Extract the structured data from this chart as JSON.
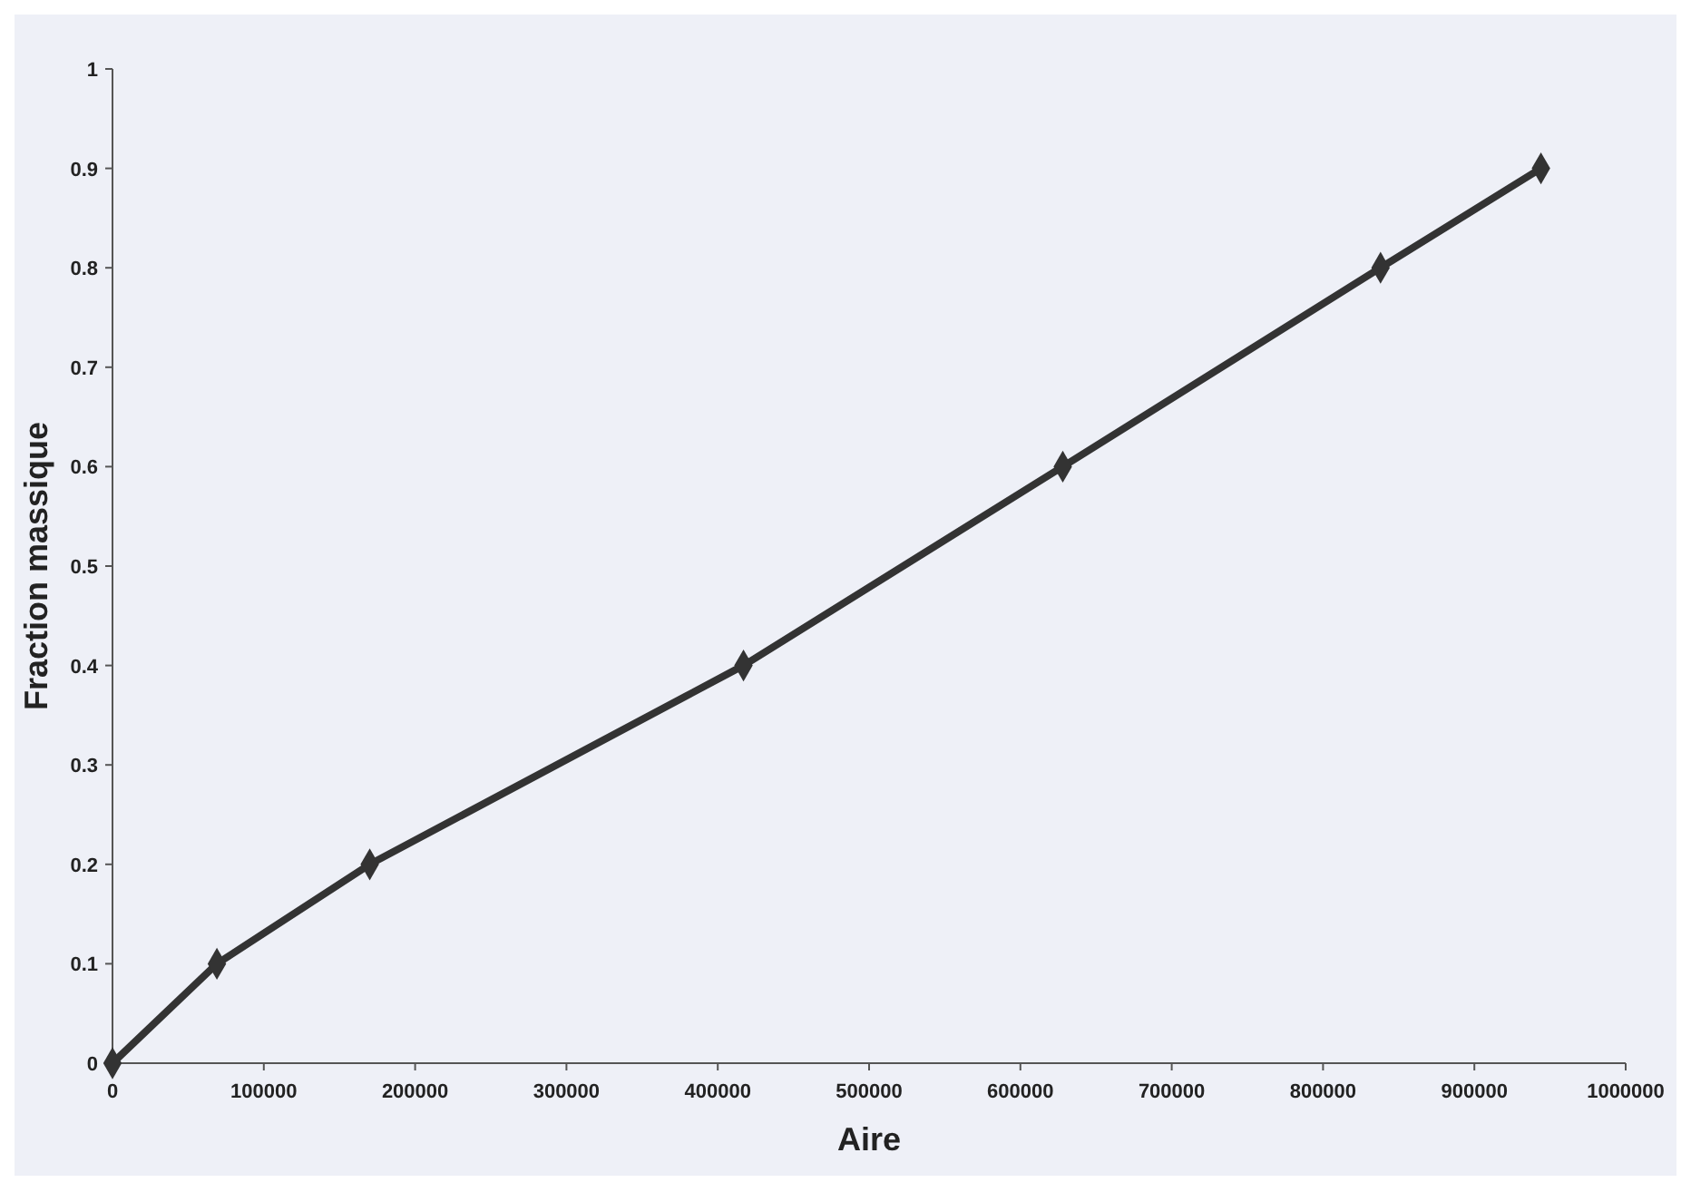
{
  "chart_data": {
    "type": "line",
    "xlabel": "Aire",
    "ylabel": "Fraction massique",
    "x": [
      0,
      69000,
      170000,
      417000,
      628000,
      838000,
      944000
    ],
    "series": [
      {
        "color": "#333333",
        "values": [
          0,
          0.1,
          0.2,
          0.4,
          0.6,
          0.8,
          0.9
        ]
      }
    ],
    "xlim": [
      0,
      1000000
    ],
    "xticks": [
      0,
      100000,
      200000,
      300000,
      400000,
      500000,
      600000,
      700000,
      800000,
      900000,
      1000000
    ],
    "ylim": [
      0,
      1
    ],
    "yticks": [
      0,
      0.1,
      0.2,
      0.3,
      0.4,
      0.5,
      0.6,
      0.7,
      0.8,
      0.9,
      1
    ],
    "marker": "diamond",
    "line_style": "solid"
  }
}
